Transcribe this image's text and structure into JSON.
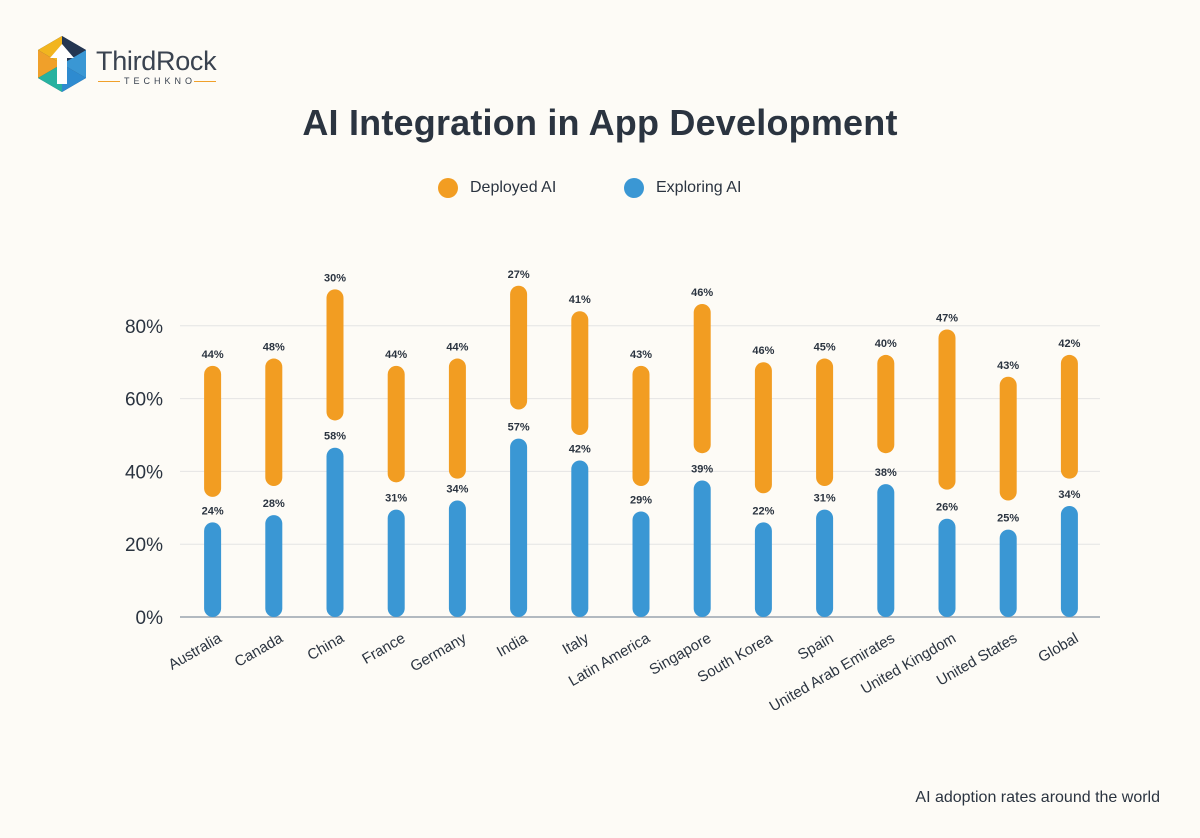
{
  "brand": {
    "name": "ThirdRock",
    "tagline": "TECHKNO"
  },
  "chart_data": {
    "type": "bar",
    "title": "AI Integration in App Development",
    "categories": [
      "Australia",
      "Canada",
      "China",
      "France",
      "Germany",
      "India",
      "Italy",
      "Latin America",
      "Singapore",
      "South Korea",
      "Spain",
      "United Arab Emirates",
      "United Kingdom",
      "United States",
      "Global"
    ],
    "series": [
      {
        "name": "Deployed AI",
        "color": "#f29d22",
        "labels": [
          "44%",
          "48%",
          "30%",
          "44%",
          "44%",
          "27%",
          "41%",
          "43%",
          "46%",
          "46%",
          "45%",
          "40%",
          "47%",
          "43%",
          "42%"
        ],
        "range": [
          [
            33,
            69
          ],
          [
            36,
            71
          ],
          [
            54,
            90
          ],
          [
            37,
            69
          ],
          [
            38,
            71
          ],
          [
            57,
            91
          ],
          [
            50,
            84
          ],
          [
            36,
            69
          ],
          [
            45,
            86
          ],
          [
            34,
            70
          ],
          [
            36,
            71
          ],
          [
            45,
            72
          ],
          [
            35,
            79
          ],
          [
            32,
            66
          ],
          [
            38,
            72
          ]
        ]
      },
      {
        "name": "Exploring AI",
        "color": "#3a97d4",
        "labels": [
          "24%",
          "28%",
          "58%",
          "31%",
          "34%",
          "57%",
          "42%",
          "29%",
          "39%",
          "22%",
          "31%",
          "38%",
          "26%",
          "25%",
          "34%"
        ],
        "values": [
          26,
          28,
          46.5,
          29.5,
          32,
          49,
          43,
          29,
          37.5,
          26,
          29.5,
          36.5,
          27,
          24,
          30.5
        ]
      }
    ],
    "yticks": [
      "0%",
      "20%",
      "40%",
      "60%",
      "80%"
    ],
    "ytick_values": [
      0,
      20,
      40,
      60,
      80
    ],
    "ylim": [
      0,
      100
    ],
    "grid": true,
    "legend_position": "top-center"
  },
  "footnote": "AI adoption rates around the world"
}
